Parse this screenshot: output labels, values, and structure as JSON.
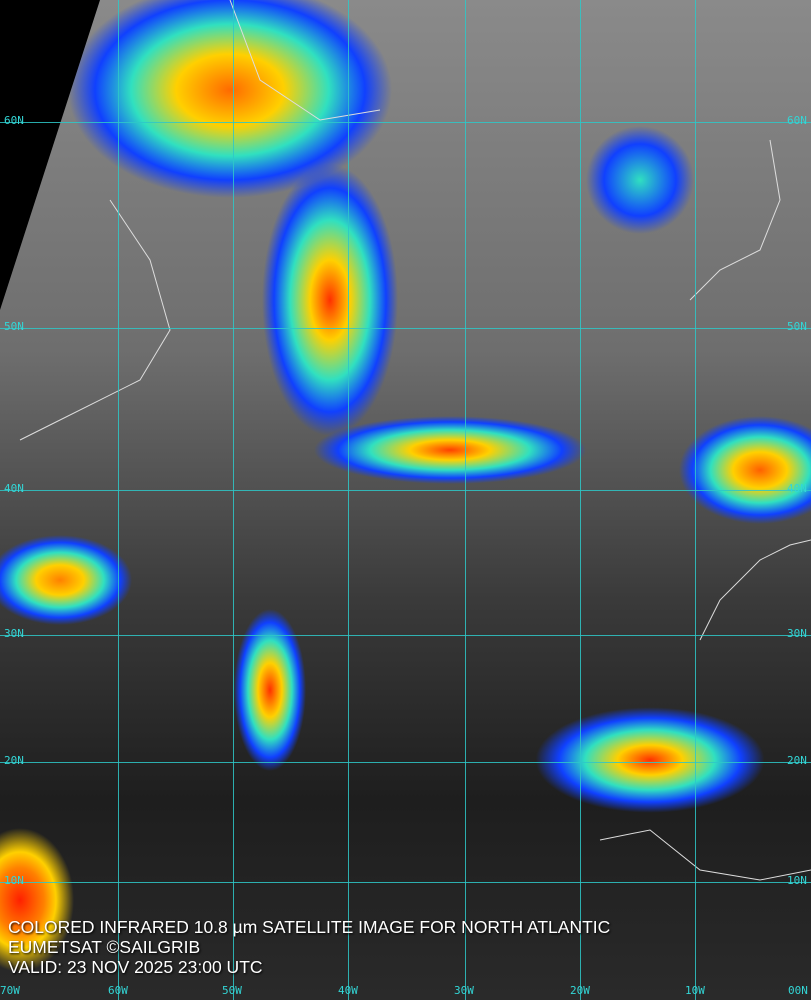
{
  "map": {
    "longitude_labels": [
      "70W",
      "60W",
      "50W",
      "40W",
      "30W",
      "20W",
      "10W",
      "00N"
    ],
    "latitude_labels": [
      "60N",
      "50N",
      "40N",
      "30N",
      "20N",
      "10N"
    ],
    "grid_color": "#2ec8c8",
    "colorscale": [
      "#1040ff",
      "#30e0c0",
      "#ffd000",
      "#ff6a00",
      "#ff2000"
    ]
  },
  "caption": {
    "line1": "COLORED INFRARED 10.8 µm SATELLITE IMAGE FOR NORTH ATLANTIC",
    "line2": "EUMETSAT ©SAILGRIB",
    "line3": "VALID:  23 NOV 2025 23:00 UTC"
  }
}
